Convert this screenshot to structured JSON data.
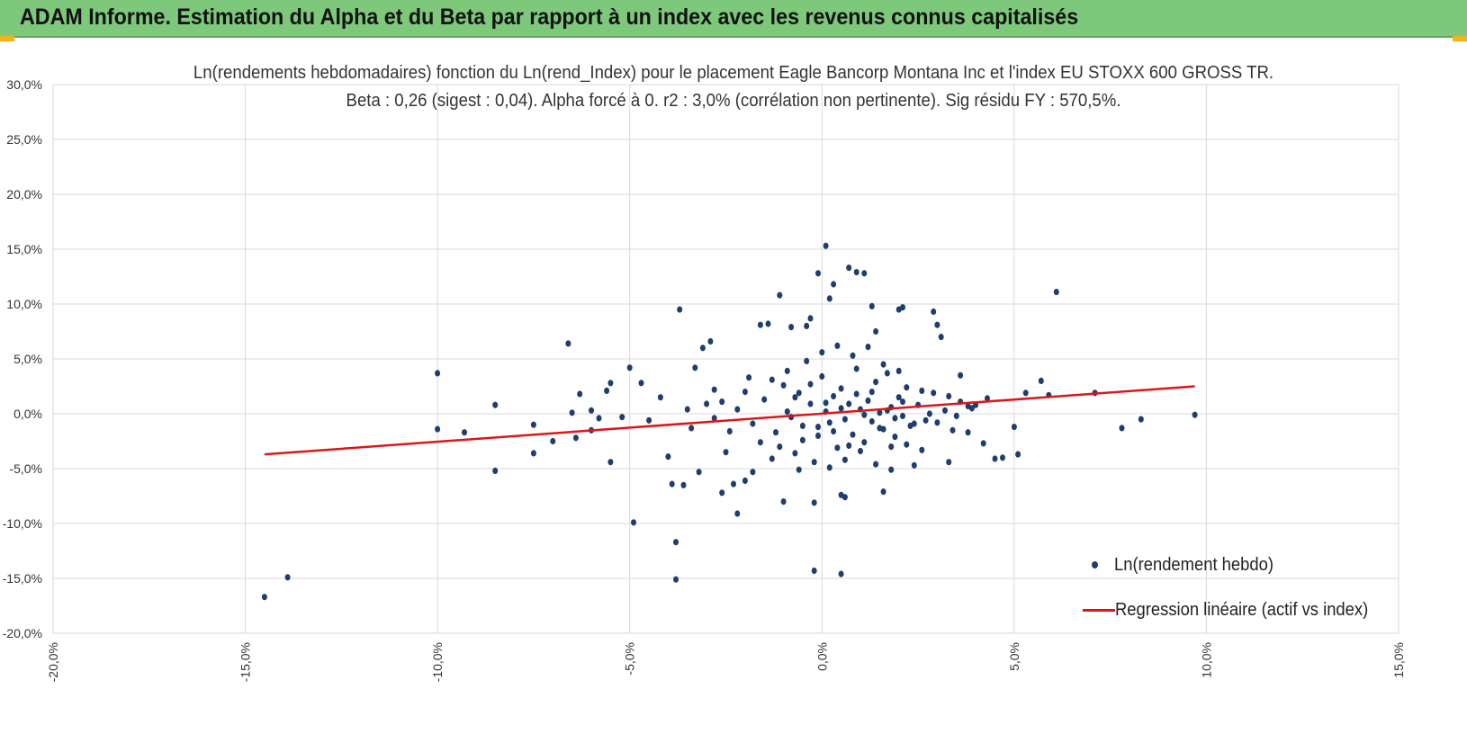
{
  "banner": {
    "title": "ADAM Informe. Estimation du Alpha et du Beta par rapport à un index avec les revenus connus capitalisés"
  },
  "colors": {
    "banner": "#7dc87b",
    "points": "#1f3e6e",
    "regression": "#e01515",
    "grid": "#d9d9d9"
  },
  "chart_data": {
    "type": "scatter",
    "title_line1": "Ln(rendements hebdomadaires) fonction du Ln(rend_Index) pour le placement Eagle Bancorp Montana Inc et l'index EU STOXX 600 GROSS TR.",
    "title_line2": "Beta : 0,26 (sigest : 0,04).  Alpha forcé à 0. r2 : 3,0% (corrélation non pertinente). Sig résidu FY : 570,5%.",
    "xlim": [
      -20,
      15
    ],
    "ylim": [
      -20,
      30
    ],
    "x_ticks": [
      -20,
      -15,
      -10,
      -5,
      0,
      5,
      10,
      15
    ],
    "y_ticks": [
      -20,
      -15,
      -10,
      -5,
      0,
      5,
      10,
      15,
      20,
      25,
      30
    ],
    "x_tick_labels": [
      "-20,0%",
      "-15,0%",
      "-10,0%",
      "-5,0%",
      "0,0%",
      "5,0%",
      "10,0%",
      "15,0%"
    ],
    "y_tick_labels": [
      "-20,0%",
      "-15,0%",
      "-10,0%",
      "-5,0%",
      "0,0%",
      "5,0%",
      "10,0%",
      "15,0%",
      "20,0%",
      "25,0%",
      "30,0%"
    ],
    "grid": true,
    "legend_position": "bottom-right",
    "series": [
      {
        "name": "Ln(rendement hebdo)",
        "type": "scatter",
        "points": [
          [
            -14.5,
            -16.7
          ],
          [
            -13.9,
            -14.9
          ],
          [
            -10.0,
            3.7
          ],
          [
            -10.0,
            -1.4
          ],
          [
            -9.3,
            -1.7
          ],
          [
            -8.5,
            0.8
          ],
          [
            -8.5,
            -5.2
          ],
          [
            -7.5,
            -1.0
          ],
          [
            -7.5,
            -3.6
          ],
          [
            -7.0,
            -2.5
          ],
          [
            -6.6,
            6.4
          ],
          [
            -6.5,
            0.1
          ],
          [
            -6.4,
            -2.2
          ],
          [
            -6.3,
            1.8
          ],
          [
            -6.0,
            0.3
          ],
          [
            -6.0,
            -1.5
          ],
          [
            -5.8,
            -0.4
          ],
          [
            -5.6,
            2.1
          ],
          [
            -5.5,
            2.8
          ],
          [
            -5.5,
            -4.4
          ],
          [
            -5.2,
            -0.3
          ],
          [
            -5.0,
            4.2
          ],
          [
            -4.9,
            -9.9
          ],
          [
            -4.7,
            2.8
          ],
          [
            -4.5,
            -0.6
          ],
          [
            -4.2,
            1.5
          ],
          [
            -4.0,
            -3.9
          ],
          [
            -3.9,
            -6.4
          ],
          [
            -3.8,
            -11.7
          ],
          [
            -3.7,
            9.5
          ],
          [
            -3.8,
            -15.1
          ],
          [
            -3.6,
            -6.5
          ],
          [
            -3.3,
            4.2
          ],
          [
            -3.2,
            -5.3
          ],
          [
            -3.1,
            6.0
          ],
          [
            -2.9,
            6.6
          ],
          [
            -2.8,
            2.2
          ],
          [
            -2.6,
            -7.2
          ],
          [
            -2.5,
            -3.5
          ],
          [
            -2.3,
            -6.4
          ],
          [
            -2.2,
            -9.1
          ],
          [
            -2.0,
            -6.1
          ],
          [
            -1.9,
            3.3
          ],
          [
            -1.8,
            -5.3
          ],
          [
            -1.6,
            8.1
          ],
          [
            -1.4,
            8.2
          ],
          [
            -1.3,
            -4.1
          ],
          [
            -1.1,
            10.8
          ],
          [
            -1.0,
            -8.0
          ],
          [
            -0.8,
            7.9
          ],
          [
            -0.6,
            -5.1
          ],
          [
            -0.4,
            8.0
          ],
          [
            -0.3,
            8.7
          ],
          [
            -0.2,
            -8.1
          ],
          [
            -0.1,
            12.8
          ],
          [
            -0.2,
            -14.3
          ],
          [
            0.1,
            15.3
          ],
          [
            0.2,
            10.5
          ],
          [
            0.3,
            11.8
          ],
          [
            0.5,
            -7.4
          ],
          [
            0.5,
            -14.6
          ],
          [
            0.6,
            -7.6
          ],
          [
            0.7,
            13.3
          ],
          [
            0.9,
            12.9
          ],
          [
            1.1,
            12.8
          ],
          [
            1.3,
            9.8
          ],
          [
            1.4,
            7.5
          ],
          [
            1.6,
            -7.1
          ],
          [
            1.8,
            -5.1
          ],
          [
            2.0,
            9.5
          ],
          [
            2.1,
            9.7
          ],
          [
            2.4,
            -4.7
          ],
          [
            2.6,
            -3.3
          ],
          [
            2.9,
            9.3
          ],
          [
            3.0,
            8.1
          ],
          [
            3.1,
            7.0
          ],
          [
            3.3,
            -4.4
          ],
          [
            3.6,
            3.5
          ],
          [
            3.8,
            -1.7
          ],
          [
            4.0,
            0.8
          ],
          [
            4.2,
            -2.7
          ],
          [
            4.5,
            -4.1
          ],
          [
            4.7,
            -4.0
          ],
          [
            5.0,
            -1.2
          ],
          [
            5.1,
            -3.7
          ],
          [
            5.3,
            1.9
          ],
          [
            5.7,
            3.0
          ],
          [
            5.9,
            1.7
          ],
          [
            6.1,
            11.1
          ],
          [
            7.1,
            1.9
          ],
          [
            7.8,
            -1.3
          ],
          [
            8.3,
            -0.5
          ],
          [
            9.7,
            -0.1
          ],
          [
            -2.2,
            0.4
          ],
          [
            -1.8,
            -0.9
          ],
          [
            -1.5,
            1.3
          ],
          [
            -1.2,
            -1.7
          ],
          [
            -1.0,
            2.6
          ],
          [
            -0.8,
            -0.3
          ],
          [
            -0.6,
            1.9
          ],
          [
            -0.5,
            -2.4
          ],
          [
            -0.3,
            0.9
          ],
          [
            -0.1,
            -1.2
          ],
          [
            0.0,
            3.4
          ],
          [
            0.1,
            0.2
          ],
          [
            0.2,
            -0.8
          ],
          [
            0.3,
            1.6
          ],
          [
            0.4,
            -3.1
          ],
          [
            0.5,
            2.3
          ],
          [
            0.6,
            -0.5
          ],
          [
            0.7,
            0.9
          ],
          [
            0.8,
            -1.9
          ],
          [
            0.9,
            4.1
          ],
          [
            1.0,
            0.4
          ],
          [
            1.1,
            -2.6
          ],
          [
            1.2,
            1.2
          ],
          [
            1.3,
            -0.7
          ],
          [
            1.4,
            2.9
          ],
          [
            1.5,
            0.1
          ],
          [
            1.6,
            -1.4
          ],
          [
            1.7,
            3.7
          ],
          [
            1.8,
            0.6
          ],
          [
            1.9,
            -2.1
          ],
          [
            2.0,
            1.5
          ],
          [
            2.1,
            -0.2
          ],
          [
            2.2,
            2.4
          ],
          [
            2.3,
            -1.1
          ],
          [
            2.5,
            0.8
          ],
          [
            2.7,
            -0.6
          ],
          [
            2.9,
            1.9
          ],
          [
            3.2,
            0.3
          ],
          [
            3.4,
            -1.5
          ],
          [
            3.6,
            1.1
          ],
          [
            3.9,
            0.5
          ],
          [
            4.3,
            1.4
          ],
          [
            -0.9,
            3.9
          ],
          [
            -0.7,
            -3.6
          ],
          [
            -0.4,
            4.8
          ],
          [
            -0.2,
            -4.4
          ],
          [
            0.0,
            5.6
          ],
          [
            0.2,
            -4.9
          ],
          [
            0.4,
            6.2
          ],
          [
            0.6,
            -4.2
          ],
          [
            0.8,
            5.3
          ],
          [
            1.0,
            -3.4
          ],
          [
            1.2,
            6.1
          ],
          [
            1.4,
            -4.6
          ],
          [
            1.6,
            4.5
          ],
          [
            1.8,
            -3.0
          ],
          [
            2.0,
            3.9
          ],
          [
            2.2,
            -2.8
          ],
          [
            -2.6,
            1.1
          ],
          [
            -2.4,
            -1.6
          ],
          [
            -2.8,
            -0.4
          ],
          [
            -3.0,
            0.9
          ],
          [
            -3.4,
            -1.3
          ],
          [
            -3.5,
            0.4
          ],
          [
            -2.0,
            2.0
          ],
          [
            -1.6,
            -2.6
          ],
          [
            -1.3,
            3.1
          ],
          [
            -1.1,
            -3.0
          ],
          [
            -0.9,
            0.2
          ],
          [
            -0.7,
            1.5
          ],
          [
            -0.5,
            -1.1
          ],
          [
            -0.3,
            2.7
          ],
          [
            -0.1,
            -2.0
          ],
          [
            0.1,
            1.0
          ],
          [
            0.3,
            -1.6
          ],
          [
            0.5,
            0.5
          ],
          [
            0.7,
            -2.9
          ],
          [
            0.9,
            1.8
          ],
          [
            1.1,
            -0.1
          ],
          [
            1.3,
            2.0
          ],
          [
            1.5,
            -1.3
          ],
          [
            1.7,
            0.3
          ],
          [
            1.9,
            -0.4
          ],
          [
            2.1,
            1.1
          ],
          [
            2.4,
            -0.9
          ],
          [
            2.6,
            2.1
          ],
          [
            2.8,
            0.0
          ],
          [
            3.0,
            -0.8
          ],
          [
            3.3,
            1.6
          ],
          [
            3.5,
            -0.2
          ],
          [
            3.8,
            0.7
          ]
        ]
      },
      {
        "name": "Regression linéaire (actif vs index)",
        "type": "line",
        "points": [
          [
            -14.5,
            -3.7
          ],
          [
            9.7,
            2.5
          ]
        ]
      }
    ]
  },
  "legend": {
    "scatter_label": "Ln(rendement hebdo)",
    "line_label": "Regression linéaire (actif vs index)"
  }
}
